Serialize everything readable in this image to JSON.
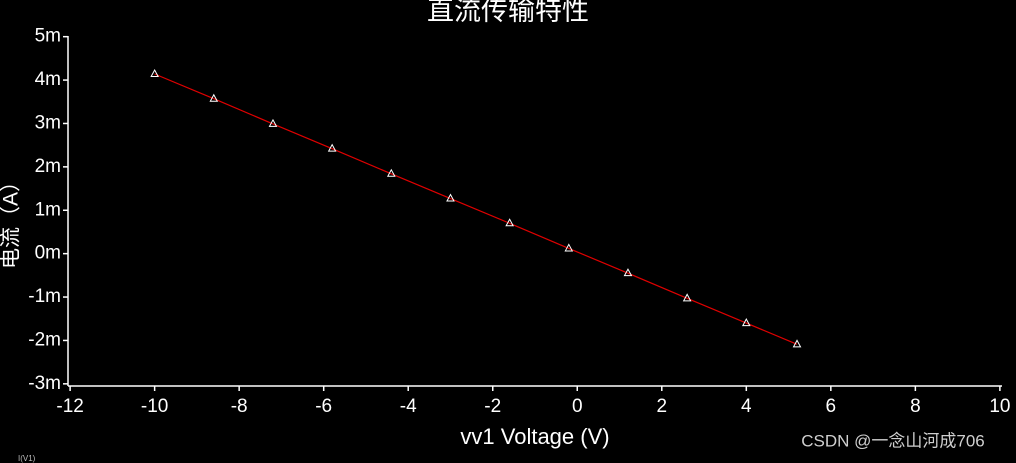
{
  "chart_data": {
    "type": "line",
    "title": "直流传输特性",
    "x_label": "vv1 Voltage (V)",
    "y_label": "电流（A）",
    "x": [
      -10,
      -8.6,
      -7.2,
      -5.8,
      -4.4,
      -3.0,
      -1.6,
      -0.2,
      1.2,
      2.6,
      4.0,
      5.2
    ],
    "series": [
      {
        "name": "I(V1)",
        "color": "#e00000",
        "marker_color": "#ffffff",
        "values": [
          0.00414,
          0.00357,
          0.00299,
          0.00242,
          0.00184,
          0.00127,
          0.0007,
          0.00012,
          -0.00045,
          -0.00103,
          -0.0016,
          -0.00209
        ]
      }
    ],
    "xlim": [
      -12.05,
      10.05
    ],
    "xticks": [
      -12,
      -10,
      -8,
      -6,
      -4,
      -2,
      0,
      2,
      4,
      6,
      8,
      10
    ],
    "ylim": [
      -0.00305,
      0.0052
    ],
    "yticks": [
      {
        "value": -0.003,
        "label": "-3m"
      },
      {
        "value": -0.002,
        "label": "-2m"
      },
      {
        "value": -0.001,
        "label": "-1m"
      },
      {
        "value": 0,
        "label": "0m"
      },
      {
        "value": 0.001,
        "label": "1m"
      },
      {
        "value": 0.002,
        "label": "2m"
      },
      {
        "value": 0.003,
        "label": "3m"
      },
      {
        "value": 0.004,
        "label": "4m"
      },
      {
        "value": 0.005,
        "label": "5m"
      }
    ],
    "watermark": "CSDN @一念山河成706"
  }
}
